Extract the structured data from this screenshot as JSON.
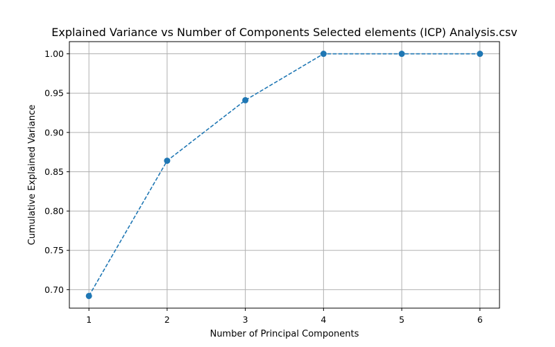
{
  "chart_data": {
    "type": "line",
    "title": "Explained Variance vs Number of Components Selected elements (ICP) Analysis.csv",
    "xlabel": "Number of Principal Components",
    "ylabel": "Cumulative Explained Variance",
    "x": [
      1,
      2,
      3,
      4,
      5,
      6
    ],
    "series": [
      {
        "values": [
          0.692,
          0.864,
          0.941,
          1.0,
          1.0,
          1.0
        ]
      }
    ],
    "xticks": [
      "1",
      "2",
      "3",
      "4",
      "5",
      "6"
    ],
    "yticks": [
      "0.70",
      "0.75",
      "0.80",
      "0.85",
      "0.90",
      "0.95",
      "1.00"
    ],
    "xlim": [
      0.75,
      6.25
    ],
    "ylim": [
      0.6765,
      1.0155
    ],
    "grid": true,
    "line_style": "dashed",
    "marker": "circle",
    "color": "#1f77b4"
  }
}
